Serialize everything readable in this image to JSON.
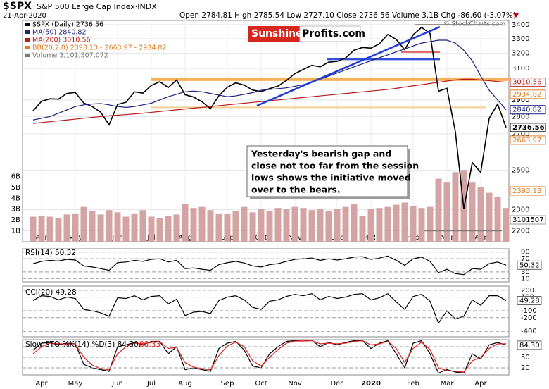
{
  "chart_data": [
    {
      "type": "line",
      "symbol": "$SPX",
      "title": "S&P 500 Large Cap Index·INDX",
      "subtitle": "21-Apr-2020",
      "header_stats": "Open 2784.81 High 2785.54 Low 2727.10 Close 2736.56 Volume 3.1B Chg -86.60 (-3.07%)",
      "watermark": "© StockCharts.com",
      "logo": [
        "Sunshine",
        "Profits.com"
      ],
      "annotation": [
        "Yesterday's bearish gap and",
        "close not too far from the session",
        "lows shows the initiative moved",
        "over to the bears."
      ],
      "log_scale": true,
      "grid": true,
      "categories": [
        null,
        "Apr",
        null,
        null,
        null,
        "May",
        null,
        null,
        null,
        null,
        "Jun",
        null,
        null,
        null,
        "Jul",
        null,
        null,
        null,
        "Aug",
        null,
        null,
        null,
        null,
        "Sep",
        null,
        null,
        null,
        "Oct",
        null,
        null,
        null,
        "Nov",
        null,
        null,
        null,
        null,
        "Dec",
        null,
        null,
        null,
        "2020",
        null,
        null,
        null,
        null,
        "Feb",
        null,
        null,
        null,
        "Mar",
        null,
        null,
        null,
        "Apr",
        null,
        null,
        null
      ],
      "series": [
        {
          "name": "$SPX (Daily) 2736.56",
          "color": "#000000",
          "values": [
            2834,
            2892,
            2907,
            2905,
            2940,
            2946,
            2881,
            2860,
            2826,
            2752,
            2873,
            2886,
            2950,
            2942,
            2990,
            3014,
            2977,
            3025,
            2932,
            2918,
            2889,
            2847,
            2926,
            2979,
            3007,
            2992,
            2961,
            2952,
            2970,
            2986,
            3022,
            3066,
            3093,
            3120,
            3110,
            3141,
            3146,
            3169,
            3221,
            3240,
            3235,
            3265,
            3330,
            3295,
            3225,
            3328,
            3380,
            3338,
            2954,
            2972,
            2711,
            2305,
            2541,
            2489,
            2790,
            2875,
            2736.56
          ]
        },
        {
          "name": "MA(50) 2840.82",
          "color": "#1a237e",
          "values": [
            2780,
            2790,
            2800,
            2820,
            2840,
            2860,
            2870,
            2875,
            2878,
            2870,
            2860,
            2855,
            2860,
            2870,
            2880,
            2900,
            2920,
            2935,
            2950,
            2955,
            2950,
            2940,
            2930,
            2920,
            2925,
            2935,
            2945,
            2960,
            2965,
            2970,
            2975,
            2985,
            2995,
            3010,
            3030,
            3050,
            3070,
            3090,
            3110,
            3130,
            3150,
            3170,
            3190,
            3210,
            3230,
            3250,
            3270,
            3280,
            3290,
            3290,
            3270,
            3220,
            3150,
            3050,
            2960,
            2900,
            2841
          ]
        },
        {
          "name": "MA(200) 3010.56",
          "color": "#b71c1c",
          "values": [
            2760,
            2765,
            2770,
            2775,
            2780,
            2785,
            2790,
            2795,
            2800,
            2805,
            2808,
            2812,
            2816,
            2820,
            2825,
            2830,
            2835,
            2840,
            2845,
            2850,
            2855,
            2860,
            2865,
            2870,
            2875,
            2880,
            2885,
            2890,
            2895,
            2900,
            2905,
            2910,
            2915,
            2920,
            2925,
            2930,
            2935,
            2940,
            2945,
            2950,
            2955,
            2960,
            2965,
            2972,
            2980,
            2988,
            2995,
            3003,
            3010,
            3018,
            3025,
            3030,
            3030,
            3025,
            3020,
            3015,
            3011
          ]
        }
      ],
      "bb_label": "BB(20,2.0) 2393.13 - 2663.97 - 2934.82",
      "bb_color": "#e07b20",
      "ylim": [
        2150,
        3430
      ],
      "yticks": [
        2200,
        2300,
        2500,
        2700,
        2800,
        2900,
        3100,
        3200,
        3300,
        3400
      ],
      "levels": [
        {
          "value": 3030,
          "color": "#f5a94a",
          "width": 5
        },
        {
          "value": 2855,
          "color": "#f5c98a",
          "width": 2
        },
        {
          "value": 3160,
          "color": "#1e3cd8",
          "width": 2.5
        },
        {
          "value": 3210,
          "color": "#e05050",
          "width": 2.5
        },
        {
          "value": 3400,
          "color": "#777777",
          "width": 1.5
        },
        {
          "value": 2200,
          "color": "#777777",
          "width": 1.5
        }
      ],
      "price_labels": [
        {
          "value": 3010.56,
          "color": "#b71c1c"
        },
        {
          "value": 2934.82,
          "color": "#e07b20"
        },
        {
          "value": 2840.82,
          "color": "#1a237e"
        },
        {
          "value": 2736.56,
          "color": "#000000"
        },
        {
          "value": 2663.97,
          "color": "#e07b20"
        },
        {
          "value": 2393.13,
          "color": "#e07b20"
        }
      ]
    },
    {
      "type": "bar",
      "series": [
        {
          "name": "Volume 3,101,507,072",
          "color": "#d4a3a3",
          "values": [
            2.3,
            2.4,
            2.3,
            2.2,
            2.5,
            2.6,
            3.2,
            2.8,
            2.5,
            2.9,
            2.7,
            2.3,
            2.6,
            2.9,
            2.3,
            2.2,
            2.4,
            2.5,
            3.5,
            3.1,
            3.2,
            2.9,
            2.6,
            2.6,
            2.8,
            3.2,
            2.7,
            3.0,
            2.8,
            3.1,
            3.0,
            3.2,
            3.1,
            2.9,
            3.0,
            2.8,
            3.0,
            3.2,
            3.5,
            2.4,
            3.0,
            3.1,
            3.2,
            3.4,
            3.6,
            3.3,
            3.1,
            3.2,
            5.8,
            5.5,
            6.4,
            6.6,
            5.5,
            5.0,
            4.5,
            4.1,
            3.1
          ]
        }
      ],
      "ylim": [
        0,
        7
      ],
      "yticks": [
        {
          "value": 1,
          "label": "1B"
        },
        {
          "value": 2,
          "label": "2B"
        },
        {
          "value": 3,
          "label": "3B"
        },
        {
          "value": 4,
          "label": "4B"
        },
        {
          "value": 5,
          "label": "5B"
        },
        {
          "value": 6,
          "label": "6B"
        }
      ],
      "last_label": "3101507"
    },
    {
      "type": "line",
      "title": "RSI(14) 50.32",
      "ylim": [
        0,
        100
      ],
      "yticks": [
        10,
        30,
        70,
        90
      ],
      "last_label": 50.32,
      "series": [
        {
          "name": "RSI(14)",
          "color": "#000000",
          "values": [
            55,
            62,
            65,
            63,
            68,
            66,
            48,
            45,
            40,
            35,
            58,
            60,
            65,
            62,
            68,
            70,
            60,
            65,
            40,
            42,
            38,
            35,
            52,
            58,
            62,
            57,
            48,
            45,
            52,
            55,
            62,
            68,
            70,
            72,
            65,
            70,
            66,
            70,
            75,
            76,
            68,
            72,
            78,
            65,
            50,
            70,
            75,
            62,
            28,
            38,
            25,
            22,
            40,
            38,
            55,
            60,
            50.32
          ]
        }
      ]
    },
    {
      "type": "line",
      "title": "CCI(20) 49.28",
      "ylim": [
        -480,
        260
      ],
      "yticks": [
        -400,
        -200,
        -100,
        100,
        200
      ],
      "last_label": 49.28,
      "series": [
        {
          "name": "CCI(20)",
          "color": "#000000",
          "values": [
            50,
            120,
            110,
            60,
            100,
            80,
            -80,
            -100,
            -130,
            -180,
            90,
            80,
            120,
            60,
            110,
            120,
            0,
            70,
            -170,
            -120,
            -110,
            -140,
            50,
            100,
            120,
            60,
            -50,
            -80,
            40,
            60,
            110,
            140,
            120,
            150,
            60,
            110,
            80,
            100,
            140,
            150,
            60,
            90,
            150,
            30,
            -80,
            110,
            140,
            40,
            -280,
            -100,
            -220,
            -180,
            60,
            -20,
            120,
            120,
            49.28
          ]
        }
      ]
    },
    {
      "type": "line",
      "title": "Slow STO %K(14) %D(3) 84.30,",
      "title_extra": "88.33",
      "ylim": [
        0,
        100
      ],
      "yticks": [
        20,
        50,
        80
      ],
      "last_label": {
        "value": 84.3,
        "label": "84.30"
      },
      "categories": [
        null,
        "Apr",
        null,
        null,
        null,
        "May",
        null,
        null,
        null,
        null,
        "Jun",
        null,
        null,
        null,
        "Jul",
        null,
        null,
        null,
        "Aug",
        null,
        null,
        null,
        null,
        "Sep",
        null,
        null,
        null,
        "Oct",
        null,
        null,
        null,
        "Nov",
        null,
        null,
        null,
        null,
        "Dec",
        null,
        null,
        null,
        "2020",
        null,
        null,
        null,
        null,
        "Feb",
        null,
        null,
        null,
        "Mar",
        null,
        null,
        null,
        "Apr",
        null,
        null,
        null
      ],
      "series": [
        {
          "name": "%K",
          "color": "#000000",
          "values": [
            70,
            90,
            92,
            85,
            90,
            88,
            30,
            20,
            15,
            10,
            80,
            85,
            92,
            85,
            95,
            95,
            60,
            80,
            15,
            20,
            15,
            10,
            75,
            90,
            95,
            70,
            25,
            20,
            60,
            80,
            95,
            97,
            96,
            98,
            80,
            92,
            85,
            92,
            97,
            97,
            75,
            90,
            97,
            60,
            20,
            90,
            97,
            60,
            5,
            15,
            8,
            5,
            60,
            45,
            85,
            92,
            84.3
          ]
        },
        {
          "name": "%D",
          "color": "#e02020",
          "values": [
            60,
            80,
            90,
            88,
            88,
            88,
            50,
            28,
            18,
            14,
            60,
            80,
            90,
            88,
            92,
            94,
            75,
            78,
            35,
            22,
            18,
            14,
            55,
            82,
            93,
            80,
            40,
            25,
            50,
            72,
            90,
            96,
            96,
            97,
            88,
            90,
            88,
            90,
            95,
            97,
            85,
            88,
            95,
            75,
            35,
            75,
            93,
            72,
            20,
            12,
            10,
            8,
            40,
            50,
            75,
            88,
            88.33
          ]
        }
      ]
    }
  ]
}
